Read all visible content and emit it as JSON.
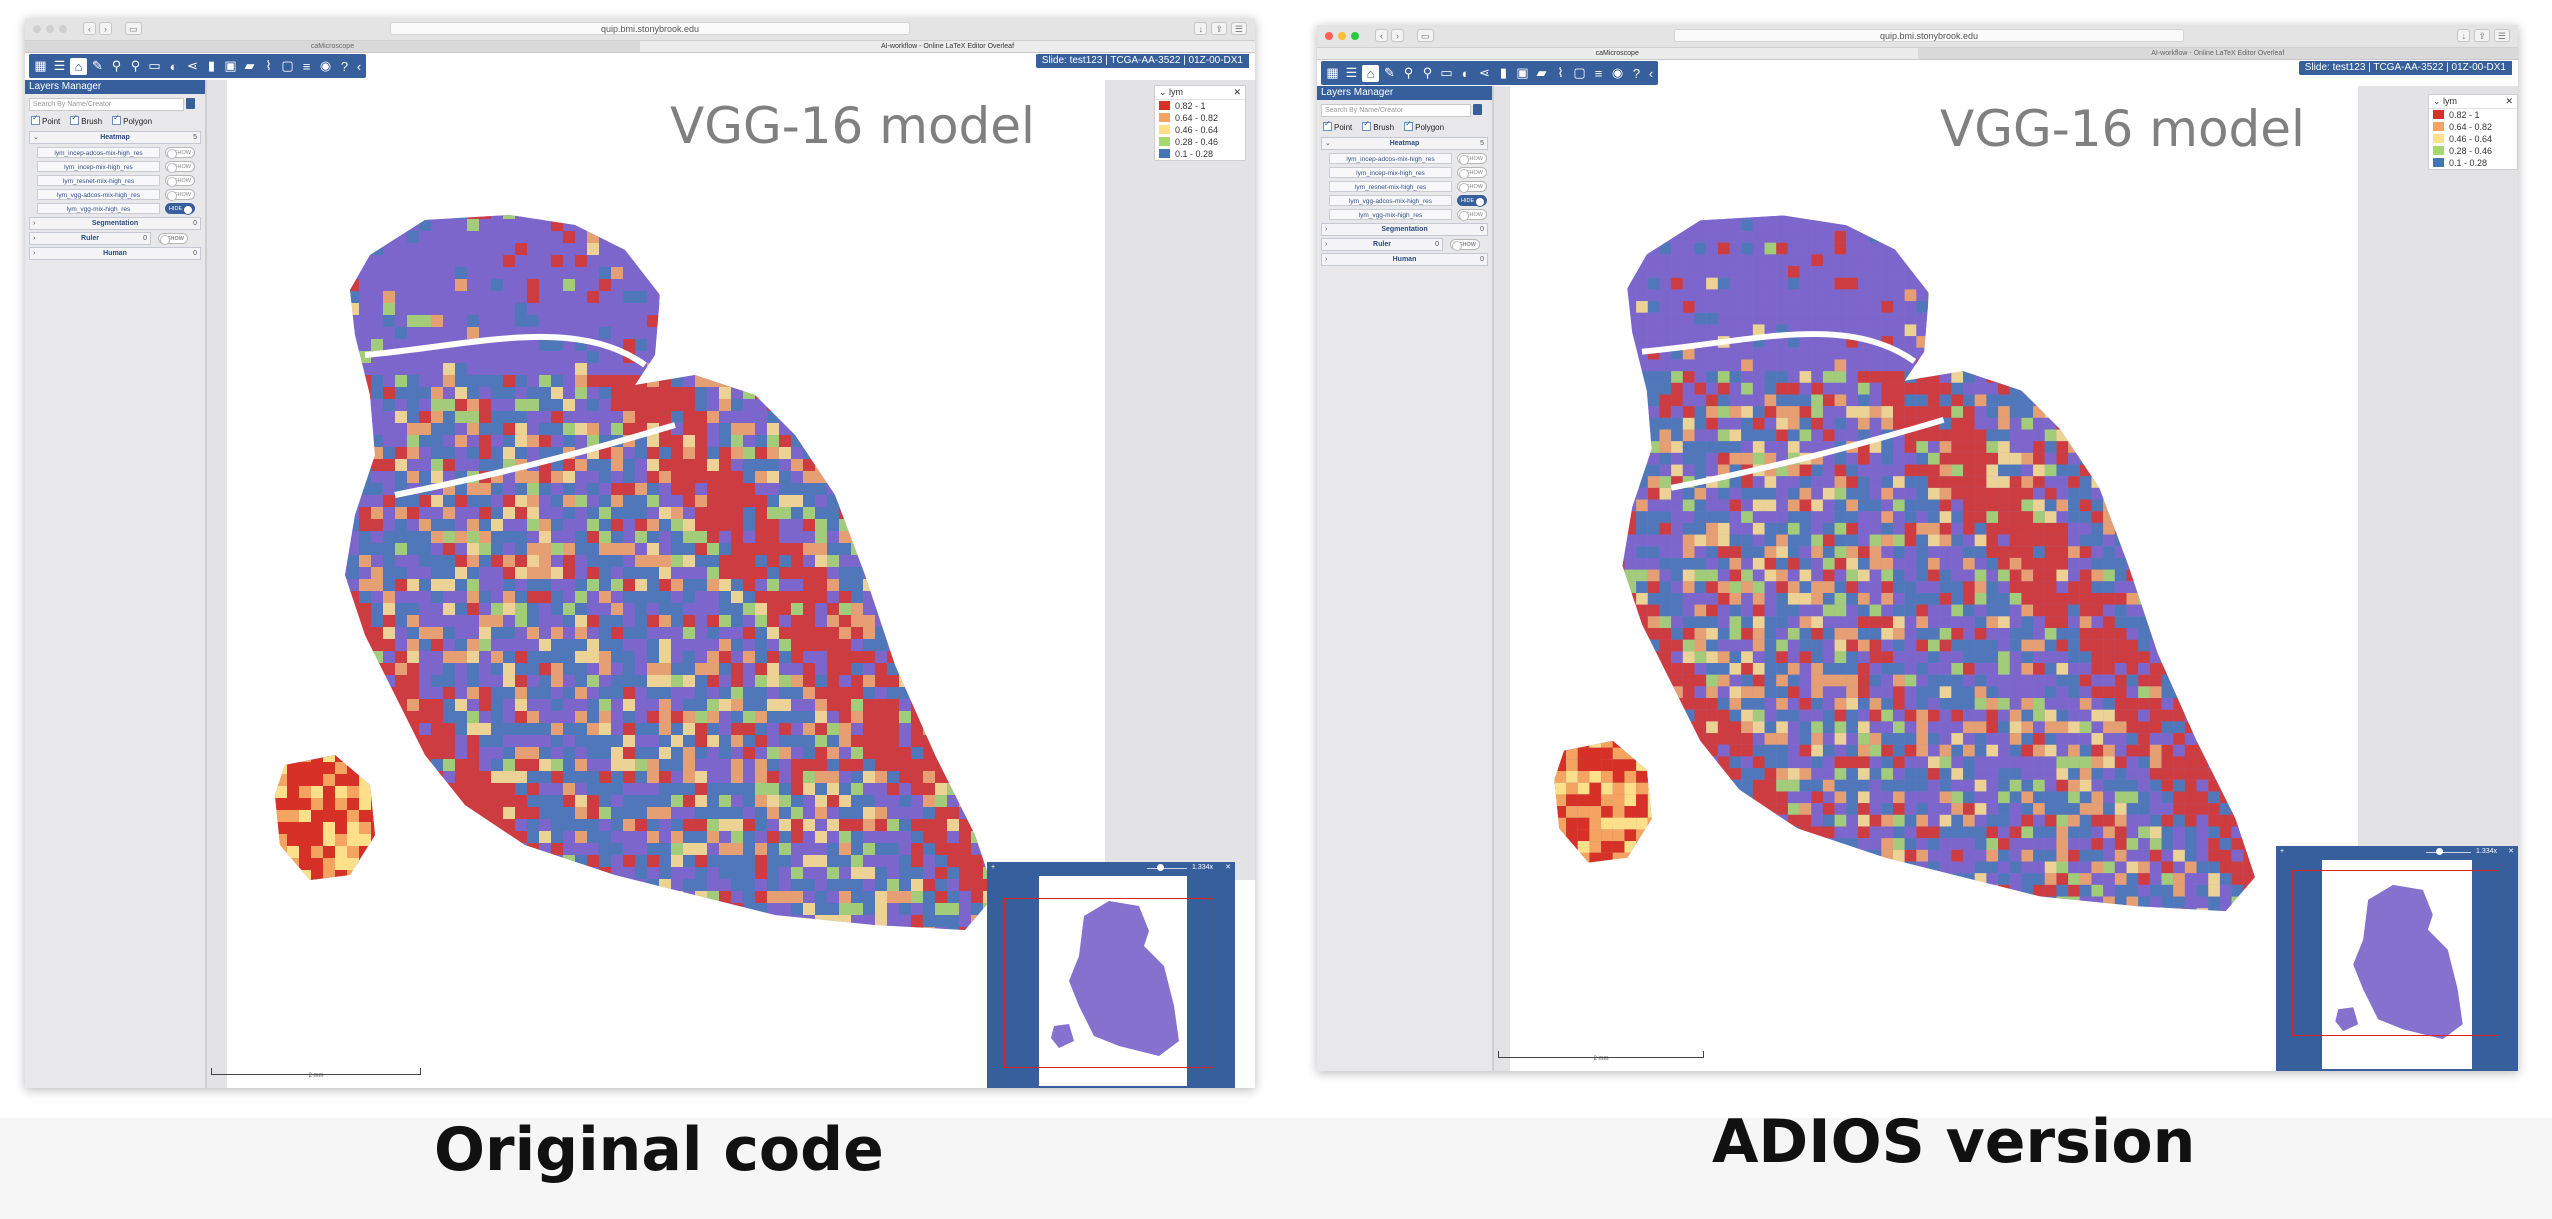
{
  "captions": {
    "left": "Original code",
    "right": "ADIOS version"
  },
  "browser": {
    "url": "quip.bmi.stonybrook.edu",
    "tabs": [
      "caMicroscope",
      "AI-workflow - Online LaTeX Editor Overleaf"
    ]
  },
  "slide_label": "Slide: test123 | TCGA-AA-3522 | 01Z-00-DX1",
  "heatmap_title": "VGG-16 model",
  "layers_manager": {
    "title": "Layers Manager",
    "search_placeholder": "Search By Name/Creator",
    "filters": [
      "Point",
      "Brush",
      "Polygon"
    ],
    "groups": {
      "heatmap": {
        "label": "Heatmap",
        "count": "5"
      },
      "segmentation": {
        "label": "Segmentation",
        "count": "0"
      },
      "ruler": {
        "label": "Ruler",
        "count": "0"
      },
      "human": {
        "label": "Human",
        "count": "0"
      }
    },
    "toggle_show": "SHOW",
    "toggle_hide": "HIDE",
    "left_layers": [
      {
        "name": "lym_incep-adcos-mix-high_res",
        "state": "SHOW"
      },
      {
        "name": "lym_incep-mix-high_res",
        "state": "SHOW"
      },
      {
        "name": "lym_resnet-mix-high_res",
        "state": "SHOW"
      },
      {
        "name": "lym_vgg-adcos-mix-high_res",
        "state": "SHOW"
      },
      {
        "name": "lym_vgg-mix-high_res",
        "state": "HIDE"
      }
    ],
    "right_layers": [
      {
        "name": "lym_incep-adcos-mix-high_res",
        "state": "SHOW"
      },
      {
        "name": "lym_incep-mix-high_res",
        "state": "SHOW"
      },
      {
        "name": "lym_resnet-mix-high_res",
        "state": "SHOW"
      },
      {
        "name": "lym_vgg-adcos-mix-high_res",
        "state": "HIDE"
      },
      {
        "name": "lym_vgg-mix-high_res",
        "state": "SHOW"
      }
    ]
  },
  "legend": {
    "title": "lym",
    "items": [
      {
        "label": "0.82 - 1",
        "color": "#d73027"
      },
      {
        "label": "0.64 - 0.82",
        "color": "#f4a460"
      },
      {
        "label": "0.46 - 0.64",
        "color": "#fee08b"
      },
      {
        "label": "0.28 - 0.46",
        "color": "#a6d96a"
      },
      {
        "label": "0.1 - 0.28",
        "color": "#4575b4"
      }
    ]
  },
  "navigator": {
    "zoom_label": "1.334x"
  },
  "scale_label": "2 mm",
  "colors": {
    "accent": "#365f9c",
    "tissue": "#7a62c9",
    "navigator_rect": "#dd2222"
  },
  "icons": [
    "apps-icon",
    "list-icon",
    "home-icon",
    "pencil-icon",
    "eyedropper-icon",
    "magnifier-icon",
    "ruler-icon",
    "contrast-icon",
    "share-icon",
    "film-icon",
    "image-icon",
    "label-icon",
    "line-chart-icon",
    "window-icon",
    "checklist-icon",
    "camera-icon",
    "help-icon",
    "collapse-icon"
  ]
}
